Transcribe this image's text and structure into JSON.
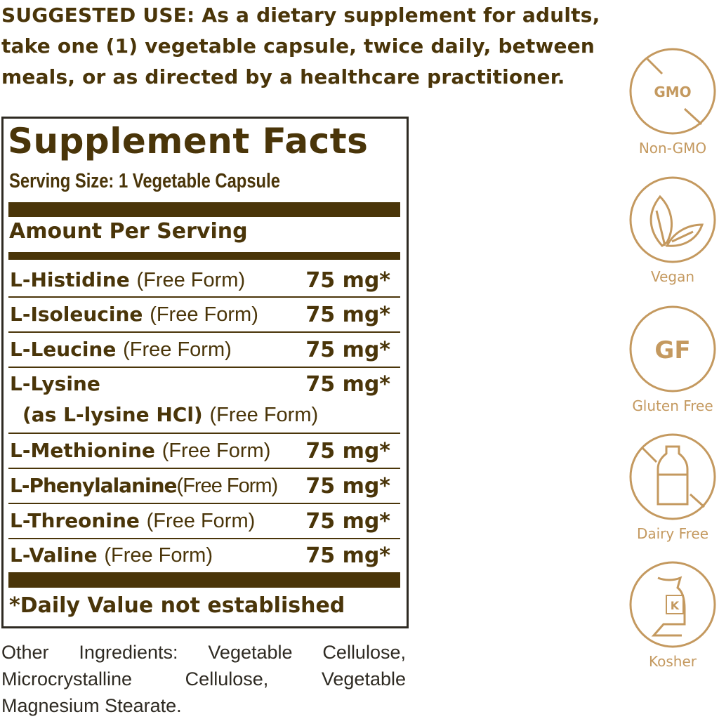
{
  "suggested_use": "SUGGESTED USE: As a dietary supplement for adults, take one (1) vegetable capsule, twice daily, between meals, or as directed by a healthcare practitioner.",
  "facts": {
    "title": "Supplement Facts",
    "serving_size": "Serving Size: 1 Vegetable Capsule",
    "amount_per_serving": "Amount Per Serving",
    "rows": [
      {
        "name": "L-Histidine",
        "form": "(Free Form)",
        "amount": "75 mg*"
      },
      {
        "name": "L-Isoleucine",
        "form": "(Free Form)",
        "amount": "75 mg*"
      },
      {
        "name": "L-Leucine",
        "form": "(Free Form)",
        "amount": "75 mg*"
      },
      {
        "name": "L-Lysine",
        "name2": "(as L-lysine HCl)",
        "form": "(Free Form)",
        "amount": "75 mg*"
      },
      {
        "name": "L-Methionine",
        "form": "(Free Form)",
        "amount": "75 mg*"
      },
      {
        "name": "L-Phenylalanine",
        "form": "(Free Form)",
        "amount": "75 mg*"
      },
      {
        "name": "L-Threonine",
        "form": "(Free Form)",
        "amount": "75 mg*"
      },
      {
        "name": "L-Valine",
        "form": "(Free Form)",
        "amount": "75 mg*"
      }
    ],
    "footnote": "*Daily Value not established"
  },
  "other_ingredients": "Other Ingredients: Vegetable Cellulose, Microcrystalline Cellulose, Vegetable Magnesium Stearate.",
  "badges": [
    {
      "icon": "no-gmo-icon",
      "icon_text": "GMO",
      "label": "Non-GMO"
    },
    {
      "icon": "leaf-icon",
      "label": "Vegan"
    },
    {
      "icon": "gluten-free-icon",
      "icon_text": "GF",
      "label": "Gluten Free"
    },
    {
      "icon": "no-milk-bottle-icon",
      "label": "Dairy Free"
    },
    {
      "icon": "kosher-icon",
      "icon_text": "K",
      "label": "Kosher"
    }
  ],
  "colors": {
    "text": "#4a3509",
    "badge": "#c4995f",
    "border": "#2e2a22"
  }
}
